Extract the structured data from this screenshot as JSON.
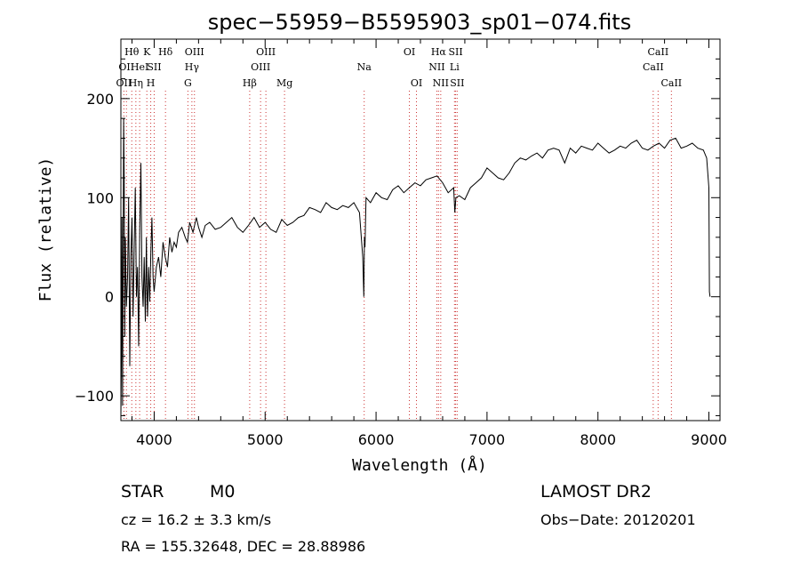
{
  "chart_data": {
    "type": "line",
    "title": "spec−55959−B5595903_sp01−074.fits",
    "xlabel": "Wavelength (Å)",
    "ylabel": "Flux (relative)",
    "xlim": [
      3700,
      9100
    ],
    "ylim": [
      -125,
      260
    ],
    "xticks": [
      4000,
      5000,
      6000,
      7000,
      8000,
      9000
    ],
    "yticks": [
      -100,
      0,
      100,
      200
    ],
    "xtick_labels": [
      "4000",
      "5000",
      "6000",
      "7000",
      "8000",
      "9000"
    ],
    "ytick_labels": [
      "−100",
      "0",
      "100",
      "200"
    ],
    "series": [
      {
        "x": [
          3700,
          3705,
          3710,
          3715,
          3720,
          3725,
          3730,
          3735,
          3740,
          3750,
          3760,
          3770,
          3780,
          3790,
          3800,
          3810,
          3820,
          3830,
          3840,
          3850,
          3860,
          3870,
          3880,
          3890,
          3900,
          3910,
          3920,
          3930,
          3935,
          3940,
          3950,
          3960,
          3970,
          3980,
          3990,
          4000,
          4020,
          4040,
          4060,
          4080,
          4100,
          4120,
          4140,
          4160,
          4180,
          4200,
          4220,
          4250,
          4280,
          4300,
          4320,
          4350,
          4380,
          4400,
          4430,
          4460,
          4500,
          4550,
          4600,
          4650,
          4700,
          4750,
          4800,
          4850,
          4900,
          4950,
          5000,
          5050,
          5100,
          5150,
          5200,
          5250,
          5300,
          5350,
          5400,
          5450,
          5500,
          5550,
          5600,
          5650,
          5700,
          5750,
          5800,
          5850,
          5880,
          5890,
          5895,
          5900,
          5910,
          5950,
          6000,
          6050,
          6100,
          6150,
          6200,
          6250,
          6300,
          6350,
          6400,
          6450,
          6500,
          6550,
          6600,
          6650,
          6700,
          6710,
          6720,
          6750,
          6800,
          6850,
          6900,
          6950,
          7000,
          7050,
          7100,
          7150,
          7200,
          7250,
          7300,
          7350,
          7400,
          7450,
          7500,
          7550,
          7600,
          7650,
          7700,
          7750,
          7800,
          7850,
          7900,
          7950,
          8000,
          8050,
          8100,
          8150,
          8200,
          8250,
          8300,
          8350,
          8400,
          8450,
          8500,
          8550,
          8600,
          8650,
          8700,
          8750,
          8800,
          8850,
          8900,
          8950,
          8980,
          9000,
          9005,
          9010
        ],
        "y": [
          -120,
          -60,
          80,
          -110,
          30,
          180,
          120,
          -40,
          60,
          -10,
          20,
          100,
          -70,
          40,
          80,
          -20,
          50,
          110,
          0,
          30,
          -50,
          70,
          135,
          20,
          -10,
          40,
          -25,
          60,
          10,
          -20,
          30,
          -5,
          45,
          80,
          20,
          5,
          30,
          40,
          20,
          55,
          40,
          30,
          60,
          45,
          55,
          50,
          65,
          70,
          60,
          55,
          75,
          65,
          80,
          70,
          60,
          72,
          75,
          68,
          70,
          75,
          80,
          70,
          65,
          72,
          80,
          70,
          75,
          68,
          65,
          78,
          72,
          75,
          80,
          82,
          90,
          88,
          85,
          95,
          90,
          88,
          92,
          90,
          95,
          85,
          40,
          0,
          60,
          50,
          100,
          95,
          105,
          100,
          98,
          108,
          112,
          105,
          110,
          115,
          112,
          118,
          120,
          122,
          115,
          105,
          110,
          85,
          100,
          102,
          98,
          110,
          115,
          120,
          130,
          125,
          120,
          118,
          125,
          135,
          140,
          138,
          142,
          145,
          140,
          148,
          150,
          148,
          135,
          150,
          145,
          152,
          150,
          148,
          155,
          150,
          145,
          148,
          152,
          150,
          155,
          158,
          150,
          148,
          152,
          155,
          150,
          158,
          160,
          150,
          152,
          155,
          150,
          148,
          140,
          110,
          5,
          0
        ]
      }
    ],
    "line_markers": [
      {
        "x": 3727,
        "labels": [
          "OII"
        ],
        "row": 3
      },
      {
        "x": 3750,
        "labels": [
          "OII"
        ],
        "row": 2
      },
      {
        "x": 3798,
        "labels": [
          "Hθ"
        ],
        "row": 1
      },
      {
        "x": 3835,
        "labels": [
          "Hη"
        ],
        "row": 3
      },
      {
        "x": 3869,
        "labels": [
          "HeI"
        ],
        "row": 2
      },
      {
        "x": 3934,
        "labels": [
          "K"
        ],
        "row": 1
      },
      {
        "x": 3969,
        "labels": [
          "H"
        ],
        "row": 3
      },
      {
        "x": 4000,
        "labels": [
          "SII"
        ],
        "row": 2
      },
      {
        "x": 4102,
        "labels": [
          "Hδ"
        ],
        "row": 1
      },
      {
        "x": 4304,
        "labels": [
          "G"
        ],
        "row": 3
      },
      {
        "x": 4340,
        "labels": [
          "Hγ"
        ],
        "row": 2
      },
      {
        "x": 4363,
        "labels": [
          "OIII"
        ],
        "row": 1
      },
      {
        "x": 4861,
        "labels": [
          "Hβ"
        ],
        "row": 3
      },
      {
        "x": 4959,
        "labels": [
          "OIII"
        ],
        "row": 2
      },
      {
        "x": 5007,
        "labels": [
          "OIII"
        ],
        "row": 1
      },
      {
        "x": 5175,
        "labels": [
          "Mg"
        ],
        "row": 3
      },
      {
        "x": 5893,
        "labels": [
          "Na"
        ],
        "row": 2
      },
      {
        "x": 6300,
        "labels": [
          "OI"
        ],
        "row": 1
      },
      {
        "x": 6364,
        "labels": [
          "OI"
        ],
        "row": 3
      },
      {
        "x": 6548,
        "labels": [
          "NII"
        ],
        "row": 2
      },
      {
        "x": 6563,
        "labels": [
          "Hα"
        ],
        "row": 1
      },
      {
        "x": 6583,
        "labels": [
          "NII"
        ],
        "row": 3
      },
      {
        "x": 6707,
        "labels": [
          "Li"
        ],
        "row": 2
      },
      {
        "x": 6717,
        "labels": [
          "SII"
        ],
        "row": 1
      },
      {
        "x": 6731,
        "labels": [
          "SII"
        ],
        "row": 3
      },
      {
        "x": 8498,
        "labels": [
          "CaII"
        ],
        "row": 2
      },
      {
        "x": 8542,
        "labels": [
          "CaII"
        ],
        "row": 1
      },
      {
        "x": 8662,
        "labels": [
          "CaII"
        ],
        "row": 3
      }
    ]
  },
  "info": {
    "object_class": "STAR",
    "subclass": "M0",
    "survey": "LAMOST DR2",
    "cz": "cz = 16.2 ± 3.3 km/s",
    "obs_date": "Obs−Date: 20120201",
    "coords": "RA = 155.32648, DEC =  28.88986"
  }
}
